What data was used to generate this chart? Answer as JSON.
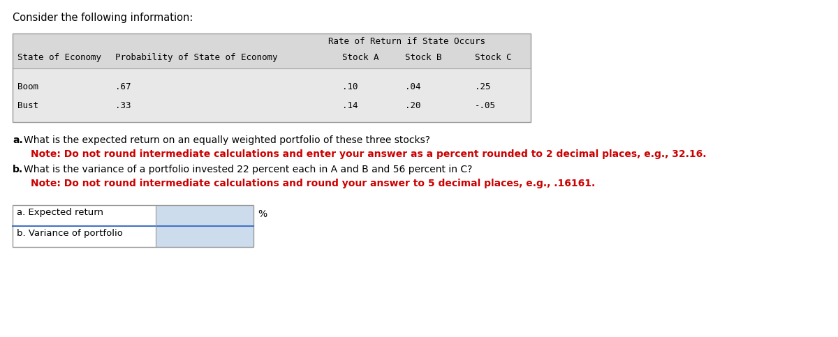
{
  "title": "Consider the following information:",
  "title_fontsize": 10.5,
  "bg_color": "#ffffff",
  "text_color": "#000000",
  "table_header_top": "Rate of Return if State Occurs",
  "col_headers_row2": [
    "State of Economy",
    "Probability of State of Economy",
    "Stock A",
    "Stock B",
    "Stock C"
  ],
  "row1": [
    "Boom",
    ".67",
    ".10",
    ".04",
    ".25"
  ],
  "row2": [
    "Bust",
    ".33",
    ".14",
    ".20",
    "-.05"
  ],
  "table_font": 9.0,
  "table_bg_header": "#d8d8d8",
  "table_bg_data": "#e8e8e8",
  "table_border_color": "#999999",
  "note_color": "#cc0000",
  "label_a": "a. Expected return",
  "label_b": "b. Variance of portfolio",
  "percent_label": "%",
  "input_box_color": "#ccdcec",
  "input_border_color": "#4472c4",
  "answer_label_bg": "#ffffff",
  "answer_outer_border": "#999999",
  "question_fontsize": 10.0,
  "note_fontsize": 10.0,
  "label_fontsize": 9.5
}
